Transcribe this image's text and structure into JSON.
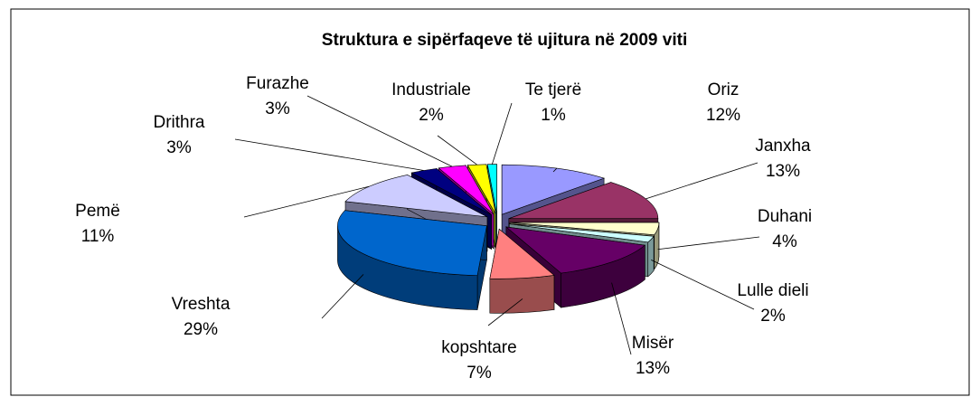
{
  "chart_data": {
    "type": "pie3d",
    "title": "Struktura e sipërfaqeve të ujitura në  2009 viti",
    "categories": [
      "Oriz",
      "Janxha",
      "Duhani",
      "Lulle dieli",
      "Misër",
      "kopshtare",
      "Vreshta",
      "Pemë",
      "Drithra",
      "Furazhe",
      "Industriale",
      "Te tjerë"
    ],
    "values": [
      12,
      13,
      4,
      2,
      13,
      7,
      29,
      11,
      3,
      3,
      2,
      1
    ],
    "value_labels": [
      "12%",
      "13%",
      "4%",
      "2%",
      "13%",
      "7%",
      "29%",
      "11%",
      "3%",
      "3%",
      "2%",
      "1%"
    ],
    "colors": [
      "#9999ff",
      "#993366",
      "#ffffcc",
      "#ccffff",
      "#660066",
      "#ff8080",
      "#0066cc",
      "#ccccff",
      "#000080",
      "#ff00ff",
      "#ffff00",
      "#00ffff"
    ]
  }
}
